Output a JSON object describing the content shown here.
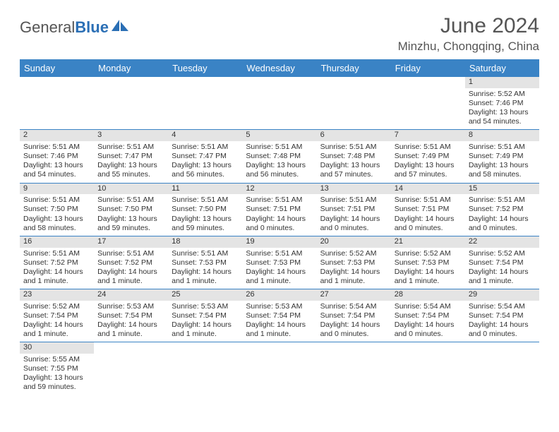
{
  "logo": {
    "word1": "General",
    "word2": "Blue"
  },
  "title": "June 2024",
  "location": "Minzhu, Chongqing, China",
  "colors": {
    "header_bg": "#3a83c5",
    "header_text": "#ffffff",
    "daynum_bg": "#e4e4e4",
    "row_border": "#3a83c5",
    "text": "#333333",
    "title_color": "#555555"
  },
  "fonts": {
    "title_size": 30,
    "location_size": 17,
    "dow_size": 13,
    "body_size": 10.5
  },
  "days_of_week": [
    "Sunday",
    "Monday",
    "Tuesday",
    "Wednesday",
    "Thursday",
    "Friday",
    "Saturday"
  ],
  "weeks": [
    [
      null,
      null,
      null,
      null,
      null,
      null,
      {
        "n": "1",
        "sunrise": "Sunrise: 5:52 AM",
        "sunset": "Sunset: 7:46 PM",
        "daylight": "Daylight: 13 hours and 54 minutes."
      }
    ],
    [
      {
        "n": "2",
        "sunrise": "Sunrise: 5:51 AM",
        "sunset": "Sunset: 7:46 PM",
        "daylight": "Daylight: 13 hours and 54 minutes."
      },
      {
        "n": "3",
        "sunrise": "Sunrise: 5:51 AM",
        "sunset": "Sunset: 7:47 PM",
        "daylight": "Daylight: 13 hours and 55 minutes."
      },
      {
        "n": "4",
        "sunrise": "Sunrise: 5:51 AM",
        "sunset": "Sunset: 7:47 PM",
        "daylight": "Daylight: 13 hours and 56 minutes."
      },
      {
        "n": "5",
        "sunrise": "Sunrise: 5:51 AM",
        "sunset": "Sunset: 7:48 PM",
        "daylight": "Daylight: 13 hours and 56 minutes."
      },
      {
        "n": "6",
        "sunrise": "Sunrise: 5:51 AM",
        "sunset": "Sunset: 7:48 PM",
        "daylight": "Daylight: 13 hours and 57 minutes."
      },
      {
        "n": "7",
        "sunrise": "Sunrise: 5:51 AM",
        "sunset": "Sunset: 7:49 PM",
        "daylight": "Daylight: 13 hours and 57 minutes."
      },
      {
        "n": "8",
        "sunrise": "Sunrise: 5:51 AM",
        "sunset": "Sunset: 7:49 PM",
        "daylight": "Daylight: 13 hours and 58 minutes."
      }
    ],
    [
      {
        "n": "9",
        "sunrise": "Sunrise: 5:51 AM",
        "sunset": "Sunset: 7:50 PM",
        "daylight": "Daylight: 13 hours and 58 minutes."
      },
      {
        "n": "10",
        "sunrise": "Sunrise: 5:51 AM",
        "sunset": "Sunset: 7:50 PM",
        "daylight": "Daylight: 13 hours and 59 minutes."
      },
      {
        "n": "11",
        "sunrise": "Sunrise: 5:51 AM",
        "sunset": "Sunset: 7:50 PM",
        "daylight": "Daylight: 13 hours and 59 minutes."
      },
      {
        "n": "12",
        "sunrise": "Sunrise: 5:51 AM",
        "sunset": "Sunset: 7:51 PM",
        "daylight": "Daylight: 14 hours and 0 minutes."
      },
      {
        "n": "13",
        "sunrise": "Sunrise: 5:51 AM",
        "sunset": "Sunset: 7:51 PM",
        "daylight": "Daylight: 14 hours and 0 minutes."
      },
      {
        "n": "14",
        "sunrise": "Sunrise: 5:51 AM",
        "sunset": "Sunset: 7:51 PM",
        "daylight": "Daylight: 14 hours and 0 minutes."
      },
      {
        "n": "15",
        "sunrise": "Sunrise: 5:51 AM",
        "sunset": "Sunset: 7:52 PM",
        "daylight": "Daylight: 14 hours and 0 minutes."
      }
    ],
    [
      {
        "n": "16",
        "sunrise": "Sunrise: 5:51 AM",
        "sunset": "Sunset: 7:52 PM",
        "daylight": "Daylight: 14 hours and 1 minute."
      },
      {
        "n": "17",
        "sunrise": "Sunrise: 5:51 AM",
        "sunset": "Sunset: 7:52 PM",
        "daylight": "Daylight: 14 hours and 1 minute."
      },
      {
        "n": "18",
        "sunrise": "Sunrise: 5:51 AM",
        "sunset": "Sunset: 7:53 PM",
        "daylight": "Daylight: 14 hours and 1 minute."
      },
      {
        "n": "19",
        "sunrise": "Sunrise: 5:51 AM",
        "sunset": "Sunset: 7:53 PM",
        "daylight": "Daylight: 14 hours and 1 minute."
      },
      {
        "n": "20",
        "sunrise": "Sunrise: 5:52 AM",
        "sunset": "Sunset: 7:53 PM",
        "daylight": "Daylight: 14 hours and 1 minute."
      },
      {
        "n": "21",
        "sunrise": "Sunrise: 5:52 AM",
        "sunset": "Sunset: 7:53 PM",
        "daylight": "Daylight: 14 hours and 1 minute."
      },
      {
        "n": "22",
        "sunrise": "Sunrise: 5:52 AM",
        "sunset": "Sunset: 7:54 PM",
        "daylight": "Daylight: 14 hours and 1 minute."
      }
    ],
    [
      {
        "n": "23",
        "sunrise": "Sunrise: 5:52 AM",
        "sunset": "Sunset: 7:54 PM",
        "daylight": "Daylight: 14 hours and 1 minute."
      },
      {
        "n": "24",
        "sunrise": "Sunrise: 5:53 AM",
        "sunset": "Sunset: 7:54 PM",
        "daylight": "Daylight: 14 hours and 1 minute."
      },
      {
        "n": "25",
        "sunrise": "Sunrise: 5:53 AM",
        "sunset": "Sunset: 7:54 PM",
        "daylight": "Daylight: 14 hours and 1 minute."
      },
      {
        "n": "26",
        "sunrise": "Sunrise: 5:53 AM",
        "sunset": "Sunset: 7:54 PM",
        "daylight": "Daylight: 14 hours and 1 minute."
      },
      {
        "n": "27",
        "sunrise": "Sunrise: 5:54 AM",
        "sunset": "Sunset: 7:54 PM",
        "daylight": "Daylight: 14 hours and 0 minutes."
      },
      {
        "n": "28",
        "sunrise": "Sunrise: 5:54 AM",
        "sunset": "Sunset: 7:54 PM",
        "daylight": "Daylight: 14 hours and 0 minutes."
      },
      {
        "n": "29",
        "sunrise": "Sunrise: 5:54 AM",
        "sunset": "Sunset: 7:54 PM",
        "daylight": "Daylight: 14 hours and 0 minutes."
      }
    ],
    [
      {
        "n": "30",
        "sunrise": "Sunrise: 5:55 AM",
        "sunset": "Sunset: 7:55 PM",
        "daylight": "Daylight: 13 hours and 59 minutes."
      },
      null,
      null,
      null,
      null,
      null,
      null
    ]
  ]
}
